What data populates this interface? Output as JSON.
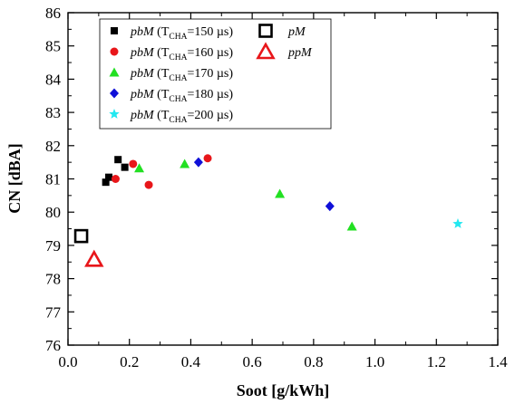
{
  "chart_data": {
    "type": "scatter",
    "xlabel": "Soot [g/kWh]",
    "ylabel": "CN [dBA]",
    "xlim": [
      0.0,
      1.4
    ],
    "ylim": [
      76,
      86
    ],
    "x_ticks": [
      "0.0",
      "0.2",
      "0.4",
      "0.6",
      "0.8",
      "1.0",
      "1.2",
      "1.4"
    ],
    "y_ticks": [
      "76",
      "77",
      "78",
      "79",
      "80",
      "81",
      "82",
      "83",
      "84",
      "85",
      "86"
    ],
    "grid": false,
    "legend_position": "top-left",
    "series": [
      {
        "label": {
          "name": "pbM",
          "sub": "CHA",
          "value": "150 µs"
        },
        "marker": "square-filled",
        "color": "#000000",
        "points": [
          {
            "x": 0.123,
            "y": 80.9
          },
          {
            "x": 0.133,
            "y": 81.05
          },
          {
            "x": 0.163,
            "y": 81.58
          },
          {
            "x": 0.185,
            "y": 81.35
          }
        ]
      },
      {
        "label": {
          "name": "pbM",
          "sub": "CHA",
          "value": "160 µs"
        },
        "marker": "circle-filled",
        "color": "#e8161a",
        "points": [
          {
            "x": 0.155,
            "y": 81.0
          },
          {
            "x": 0.212,
            "y": 81.45
          },
          {
            "x": 0.263,
            "y": 80.82
          },
          {
            "x": 0.455,
            "y": 81.62
          }
        ]
      },
      {
        "label": {
          "name": "pbM",
          "sub": "CHA",
          "value": "170 µs"
        },
        "marker": "triangle-filled",
        "color": "#22e022",
        "points": [
          {
            "x": 0.232,
            "y": 81.32
          },
          {
            "x": 0.38,
            "y": 81.45
          },
          {
            "x": 0.69,
            "y": 80.55
          },
          {
            "x": 0.925,
            "y": 79.57
          }
        ]
      },
      {
        "label": {
          "name": "pbM",
          "sub": "CHA",
          "value": "180 µs"
        },
        "marker": "diamond-filled",
        "color": "#1010d8",
        "points": [
          {
            "x": 0.425,
            "y": 81.5
          },
          {
            "x": 0.853,
            "y": 80.18
          }
        ]
      },
      {
        "label": {
          "name": "pbM",
          "sub": "CHA",
          "value": "200 µs"
        },
        "marker": "star-filled",
        "color": "#22e8f0",
        "points": [
          {
            "x": 1.27,
            "y": 79.65
          }
        ]
      },
      {
        "label": {
          "name": "pM"
        },
        "marker": "square-open",
        "color": "#000000",
        "points": [
          {
            "x": 0.043,
            "y": 79.28
          }
        ]
      },
      {
        "label": {
          "name": "ppM"
        },
        "marker": "triangle-open",
        "color": "#e8161a",
        "points": [
          {
            "x": 0.085,
            "y": 78.58
          }
        ]
      }
    ]
  }
}
